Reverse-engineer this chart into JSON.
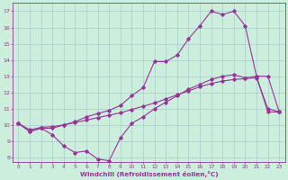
{
  "xlabel": "Windchill (Refroidissement éolien,°C)",
  "bg_color": "#cceedd",
  "grid_color": "#aacccc",
  "line_color": "#993399",
  "xlim": [
    -0.5,
    23.5
  ],
  "ylim": [
    7.7,
    17.5
  ],
  "xticks": [
    0,
    1,
    2,
    3,
    4,
    5,
    6,
    7,
    8,
    9,
    10,
    11,
    12,
    13,
    14,
    15,
    16,
    17,
    18,
    19,
    20,
    21,
    22,
    23
  ],
  "yticks": [
    8,
    9,
    10,
    11,
    12,
    13,
    14,
    15,
    16,
    17
  ],
  "line1_x": [
    0,
    1,
    2,
    3,
    4,
    5,
    6,
    7,
    8,
    9,
    10,
    11,
    12,
    13,
    14,
    15,
    16,
    17,
    18,
    19,
    20,
    21,
    22,
    23
  ],
  "line1_y": [
    10.1,
    9.6,
    9.8,
    9.4,
    8.7,
    8.3,
    8.4,
    7.9,
    7.8,
    9.2,
    10.1,
    10.5,
    11.0,
    11.4,
    11.8,
    12.2,
    12.5,
    12.8,
    13.0,
    13.1,
    12.9,
    13.0,
    10.8,
    10.8
  ],
  "line2_x": [
    0,
    1,
    2,
    3,
    4,
    5,
    6,
    7,
    8,
    9,
    10,
    11,
    12,
    13,
    14,
    15,
    16,
    17,
    18,
    19,
    20,
    21,
    22,
    23
  ],
  "line2_y": [
    10.1,
    9.7,
    9.85,
    9.9,
    10.0,
    10.15,
    10.3,
    10.45,
    10.6,
    10.75,
    10.95,
    11.15,
    11.35,
    11.6,
    11.85,
    12.1,
    12.35,
    12.55,
    12.7,
    12.8,
    12.85,
    12.9,
    11.0,
    10.8
  ],
  "line3_x": [
    0,
    1,
    2,
    3,
    4,
    5,
    6,
    7,
    8,
    9,
    10,
    11,
    12,
    13,
    14,
    15,
    16,
    17,
    18,
    19,
    20,
    21,
    22,
    23
  ],
  "line3_y": [
    10.1,
    9.6,
    9.8,
    9.8,
    10.0,
    10.2,
    10.5,
    10.7,
    10.9,
    11.2,
    11.8,
    12.3,
    13.9,
    13.9,
    14.3,
    15.3,
    16.1,
    17.0,
    16.8,
    17.0,
    16.1,
    13.0,
    13.0,
    10.8
  ]
}
